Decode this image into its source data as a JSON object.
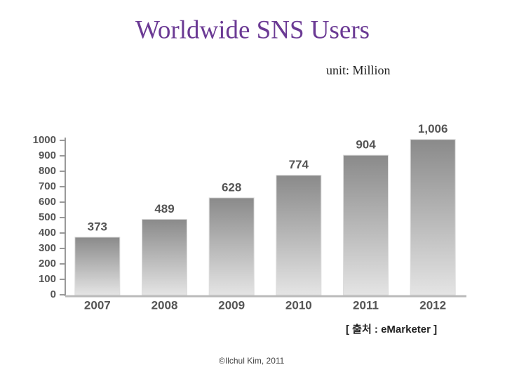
{
  "title": "Worldwide SNS Users",
  "unit": "unit: Million",
  "source": "[ 출처 : eMarketer ]",
  "footer": "©Ilchul Kim, 2011",
  "chart_data": {
    "type": "bar",
    "categories": [
      "2007",
      "2008",
      "2009",
      "2010",
      "2011",
      "2012"
    ],
    "values": [
      373,
      489,
      628,
      774,
      904,
      1006
    ],
    "value_labels": [
      "373",
      "489",
      "628",
      "774",
      "904",
      "1,006"
    ],
    "color": "#8a8a8a",
    "ylim": [
      0,
      1000
    ],
    "yticks": [
      0,
      100,
      200,
      300,
      400,
      500,
      600,
      700,
      800,
      900,
      1000
    ]
  }
}
